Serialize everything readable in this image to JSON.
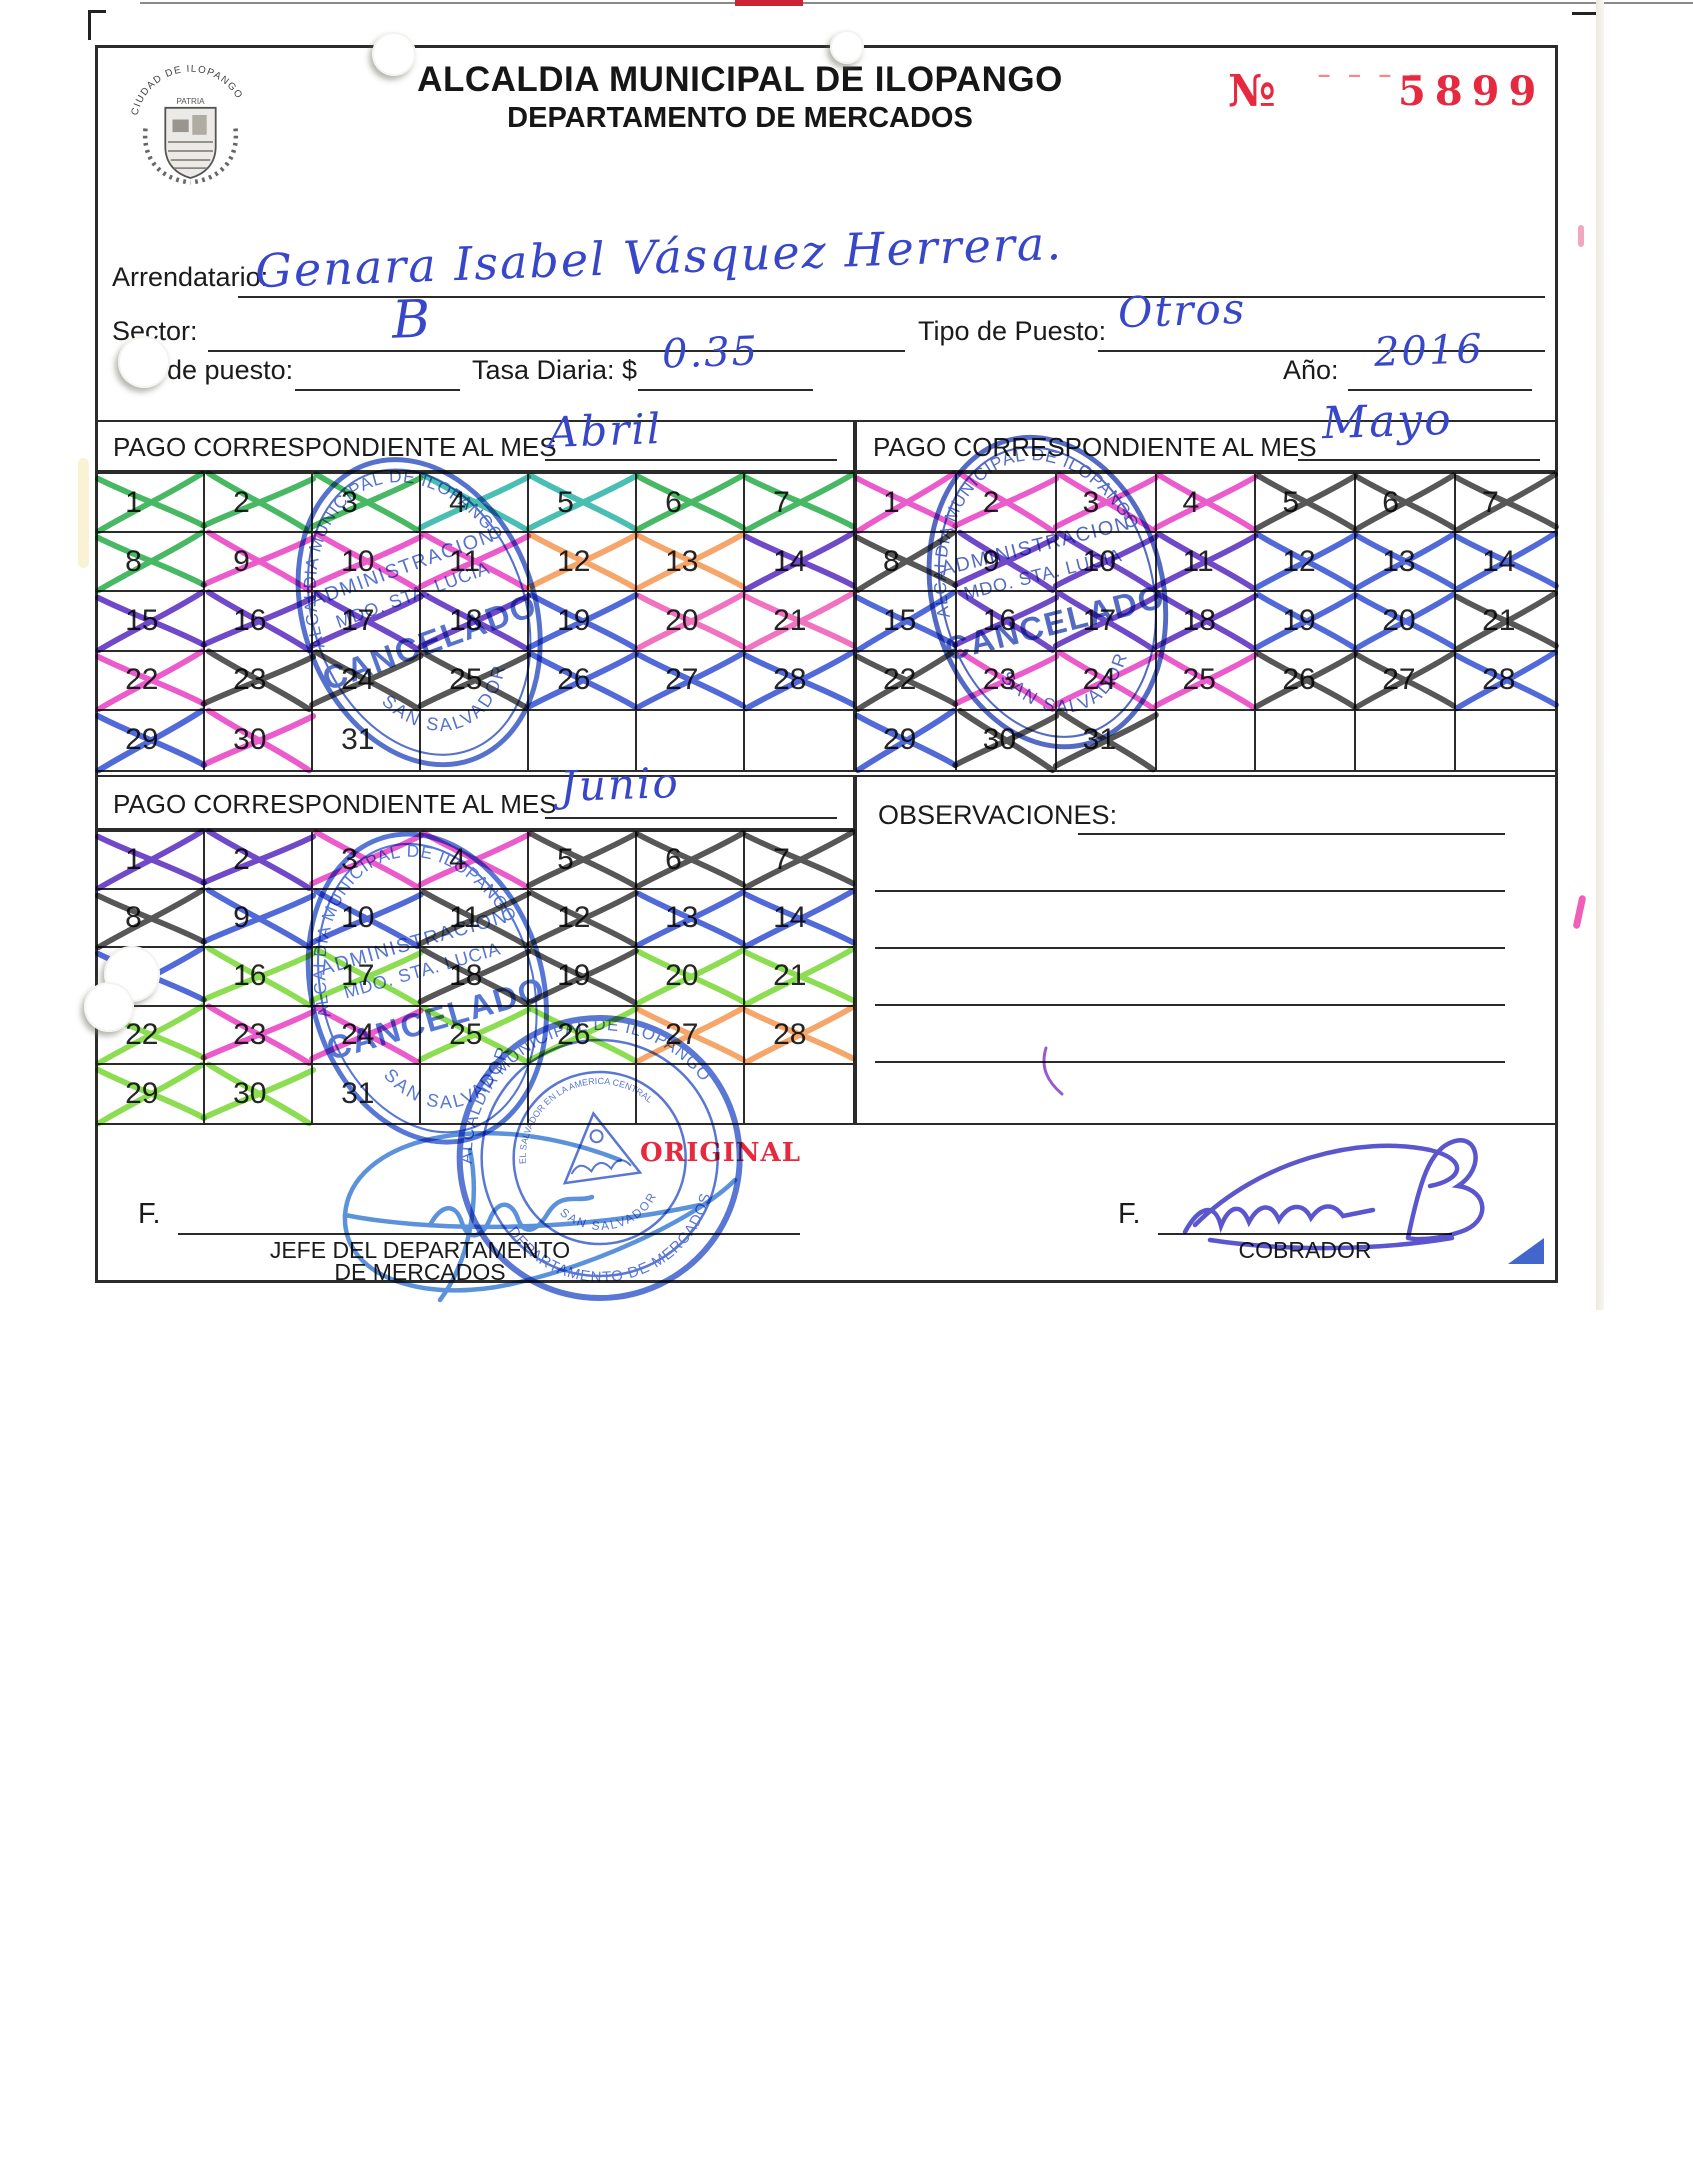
{
  "header": {
    "title": "ALCALDIA MUNICIPAL DE ILOPANGO",
    "subtitle": "DEPARTAMENTO DE MERCADOS",
    "no_symbol": "№",
    "no_dashes": "– – – –",
    "receipt_number": "5899",
    "seal_arc_text": "CIUDAD DE ILOPANGO",
    "seal_sub_text": "PATRIA"
  },
  "fields": {
    "arrendatario_label": "Arrendatario:",
    "arrendatario_value": "Genara Isabel Vásquez Herrera.",
    "sector_label": "Sector:",
    "sector_value": "B",
    "tipo_puesto_label": "Tipo de Puesto:",
    "tipo_puesto_value": "Otros",
    "num_puesto_label": ". de puesto:",
    "tasa_diaria_label": "Tasa Diaria: $",
    "tasa_diaria_value": "0.35",
    "anio_label": "Año:",
    "anio_value": "2016"
  },
  "calendars": [
    {
      "label": "PAGO CORRESPONDIENTE AL MES",
      "value": "Abril",
      "cross_colors": [
        "green",
        "green",
        "green",
        "teal",
        "teal",
        "green",
        "green",
        "green",
        "magenta",
        "magenta",
        "magenta",
        "orange",
        "orange",
        "purple",
        "purple",
        "purple",
        "purple",
        "purple",
        "blue",
        "pink",
        "pink",
        "magenta",
        "dark",
        "dark",
        "dark",
        "blue",
        "blue",
        "blue",
        "blue",
        "magenta",
        null
      ]
    },
    {
      "label": "PAGO CORRESPONDIENTE AL MES",
      "value": "Mayo",
      "cross_colors": [
        "magenta",
        "magenta",
        "magenta",
        "magenta",
        "dark",
        "dark",
        "dark",
        "dark",
        "purple",
        "purple",
        "purple",
        "blue",
        "blue",
        "blue",
        "blue",
        "purple",
        "purple",
        "purple",
        "blue",
        "blue",
        "dark",
        "dark",
        "magenta",
        "magenta",
        "magenta",
        "dark",
        "dark",
        "blue",
        "blue",
        "dark",
        "dark"
      ]
    },
    {
      "label": "PAGO CORRESPONDIENTE AL MES",
      "value": "Junio",
      "cross_colors": [
        "purple",
        "purple",
        "magenta",
        "magenta",
        "dark",
        "dark",
        "dark",
        "dark",
        "blue",
        "blue",
        "dark",
        "dark",
        "blue",
        "blue",
        "blue",
        "lime",
        "lime",
        "dark",
        "dark",
        "lime",
        "lime",
        "lime",
        "magenta",
        "magenta",
        "lime",
        "lime",
        "orange",
        "orange",
        "lime",
        "lime",
        null
      ]
    }
  ],
  "observaciones": {
    "label": "OBSERVACIONES:"
  },
  "footer": {
    "original_label": "ORIGINAL",
    "f_label": "F.",
    "left_role_line1": "JEFE DEL DEPARTAMENTO",
    "left_role_line2": "DE MERCADOS",
    "right_role": "COBRADOR"
  },
  "stamps": {
    "oval_top": "ALCALDIA MUNICIPAL DE ILOPANGO",
    "oval_admin": "ADMINISTRACION",
    "oval_mdo": "MDO. STA. LUCIA",
    "oval_cancel": "CANCELADO",
    "oval_bottom": "SAN SALVADOR",
    "round_top": "ALCALDIA MUNICIPAL DE ILOPANGO",
    "round_bottom": "DEPARTAMENTO DE MERCADOS",
    "round_inner": "EL SALVADOR EN LA AMERICA CENTRAL",
    "round_inner_bottom": "SAN SALVADOR"
  },
  "colors": {
    "cross": {
      "green": "#2fae4e",
      "teal": "#2fb5a8",
      "lime": "#7cd93a",
      "magenta": "#e944c4",
      "pink": "#ef5fb7",
      "orange": "#f59a55",
      "purple": "#5b2fc0",
      "blue": "#3a55d4",
      "dark": "#3f3f3f"
    },
    "ink_blue": "#3847c8",
    "stamp_blue": "#2d4fc0",
    "receipt_red": "#e6293e"
  }
}
